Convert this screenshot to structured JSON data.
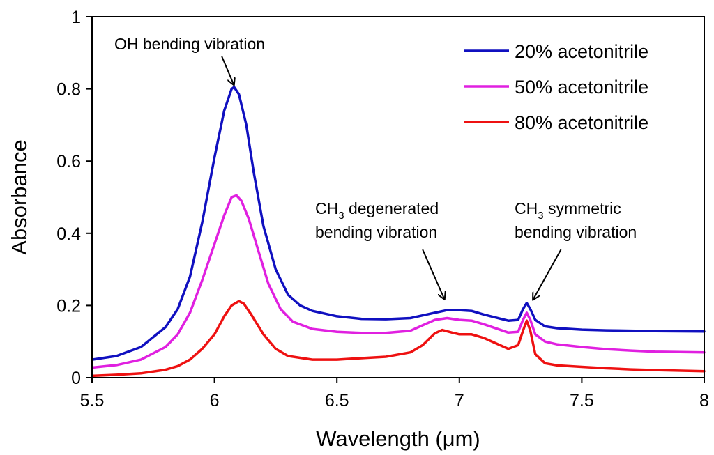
{
  "chart_data": {
    "type": "line",
    "title": "",
    "xlabel": "Wavelength (μm)",
    "ylabel": "Absorbance",
    "xlim": [
      5.5,
      8
    ],
    "ylim": [
      0,
      1
    ],
    "x_ticks": [
      5.5,
      6,
      6.5,
      7,
      7.5,
      8
    ],
    "x_tick_labels": [
      "5.5",
      "6",
      "6.5",
      "7",
      "7.5",
      "8"
    ],
    "y_ticks": [
      0,
      0.2,
      0.4,
      0.6,
      0.8,
      1
    ],
    "y_tick_labels": [
      "0",
      "0.2",
      "0.4",
      "0.6",
      "0.8",
      "1"
    ],
    "grid": false,
    "legend_position": "top-right",
    "series": [
      {
        "name": "20% acetonitrile",
        "color": "#1010c0",
        "points": [
          [
            5.5,
            0.05
          ],
          [
            5.6,
            0.06
          ],
          [
            5.7,
            0.085
          ],
          [
            5.8,
            0.14
          ],
          [
            5.85,
            0.19
          ],
          [
            5.9,
            0.28
          ],
          [
            5.95,
            0.43
          ],
          [
            6.0,
            0.61
          ],
          [
            6.04,
            0.74
          ],
          [
            6.07,
            0.8
          ],
          [
            6.08,
            0.805
          ],
          [
            6.1,
            0.785
          ],
          [
            6.13,
            0.7
          ],
          [
            6.16,
            0.57
          ],
          [
            6.2,
            0.42
          ],
          [
            6.25,
            0.3
          ],
          [
            6.3,
            0.23
          ],
          [
            6.35,
            0.2
          ],
          [
            6.4,
            0.185
          ],
          [
            6.5,
            0.17
          ],
          [
            6.6,
            0.163
          ],
          [
            6.7,
            0.162
          ],
          [
            6.8,
            0.165
          ],
          [
            6.9,
            0.18
          ],
          [
            6.95,
            0.187
          ],
          [
            7.0,
            0.187
          ],
          [
            7.05,
            0.185
          ],
          [
            7.1,
            0.175
          ],
          [
            7.2,
            0.158
          ],
          [
            7.24,
            0.16
          ],
          [
            7.26,
            0.19
          ],
          [
            7.275,
            0.207
          ],
          [
            7.29,
            0.19
          ],
          [
            7.31,
            0.16
          ],
          [
            7.35,
            0.142
          ],
          [
            7.4,
            0.137
          ],
          [
            7.5,
            0.133
          ],
          [
            7.6,
            0.131
          ],
          [
            7.8,
            0.129
          ],
          [
            8.0,
            0.128
          ]
        ]
      },
      {
        "name": "50% acetonitrile",
        "color": "#e020e0",
        "points": [
          [
            5.5,
            0.028
          ],
          [
            5.6,
            0.035
          ],
          [
            5.7,
            0.05
          ],
          [
            5.8,
            0.085
          ],
          [
            5.85,
            0.12
          ],
          [
            5.9,
            0.18
          ],
          [
            5.95,
            0.27
          ],
          [
            6.0,
            0.37
          ],
          [
            6.04,
            0.45
          ],
          [
            6.07,
            0.5
          ],
          [
            6.09,
            0.505
          ],
          [
            6.11,
            0.49
          ],
          [
            6.14,
            0.44
          ],
          [
            6.18,
            0.35
          ],
          [
            6.22,
            0.26
          ],
          [
            6.27,
            0.19
          ],
          [
            6.32,
            0.155
          ],
          [
            6.4,
            0.135
          ],
          [
            6.5,
            0.127
          ],
          [
            6.6,
            0.124
          ],
          [
            6.7,
            0.124
          ],
          [
            6.8,
            0.13
          ],
          [
            6.85,
            0.145
          ],
          [
            6.9,
            0.16
          ],
          [
            6.95,
            0.165
          ],
          [
            7.0,
            0.16
          ],
          [
            7.05,
            0.158
          ],
          [
            7.1,
            0.148
          ],
          [
            7.2,
            0.125
          ],
          [
            7.24,
            0.127
          ],
          [
            7.26,
            0.16
          ],
          [
            7.275,
            0.18
          ],
          [
            7.29,
            0.16
          ],
          [
            7.31,
            0.12
          ],
          [
            7.35,
            0.1
          ],
          [
            7.4,
            0.092
          ],
          [
            7.5,
            0.085
          ],
          [
            7.6,
            0.079
          ],
          [
            7.7,
            0.075
          ],
          [
            7.8,
            0.072
          ],
          [
            8.0,
            0.07
          ]
        ]
      },
      {
        "name": "80% acetonitrile",
        "color": "#ee1111",
        "points": [
          [
            5.5,
            0.005
          ],
          [
            5.6,
            0.008
          ],
          [
            5.7,
            0.012
          ],
          [
            5.8,
            0.022
          ],
          [
            5.85,
            0.032
          ],
          [
            5.9,
            0.05
          ],
          [
            5.95,
            0.08
          ],
          [
            6.0,
            0.12
          ],
          [
            6.04,
            0.17
          ],
          [
            6.07,
            0.2
          ],
          [
            6.1,
            0.212
          ],
          [
            6.12,
            0.205
          ],
          [
            6.15,
            0.175
          ],
          [
            6.2,
            0.12
          ],
          [
            6.25,
            0.08
          ],
          [
            6.3,
            0.06
          ],
          [
            6.4,
            0.05
          ],
          [
            6.5,
            0.05
          ],
          [
            6.6,
            0.054
          ],
          [
            6.7,
            0.058
          ],
          [
            6.8,
            0.07
          ],
          [
            6.85,
            0.09
          ],
          [
            6.9,
            0.123
          ],
          [
            6.93,
            0.132
          ],
          [
            6.97,
            0.125
          ],
          [
            7.0,
            0.12
          ],
          [
            7.05,
            0.12
          ],
          [
            7.1,
            0.11
          ],
          [
            7.2,
            0.08
          ],
          [
            7.24,
            0.09
          ],
          [
            7.26,
            0.13
          ],
          [
            7.275,
            0.158
          ],
          [
            7.29,
            0.13
          ],
          [
            7.31,
            0.065
          ],
          [
            7.35,
            0.04
          ],
          [
            7.4,
            0.034
          ],
          [
            7.5,
            0.03
          ],
          [
            7.6,
            0.026
          ],
          [
            7.7,
            0.023
          ],
          [
            7.8,
            0.021
          ],
          [
            8.0,
            0.018
          ]
        ]
      }
    ],
    "annotations": [
      {
        "id": "oh",
        "lines": [
          {
            "text": "OH bending vibration"
          }
        ],
        "arrow_from": [
          6.03,
          0.89
        ],
        "arrow_to": [
          6.08,
          0.81
        ]
      },
      {
        "id": "ch3-degenerated",
        "lines": [
          {
            "text": "CH",
            "sub": "3",
            "rest": " degenerated"
          },
          {
            "text": "bending vibration"
          }
        ],
        "arrow_from": [
          6.85,
          0.355
        ],
        "arrow_to": [
          6.94,
          0.216
        ]
      },
      {
        "id": "ch3-symmetric",
        "lines": [
          {
            "text": "CH",
            "sub": "3",
            "rest": " symmetric"
          },
          {
            "text": "bending vibration"
          }
        ],
        "arrow_from": [
          7.415,
          0.355
        ],
        "arrow_to": [
          7.3,
          0.215
        ]
      }
    ]
  }
}
